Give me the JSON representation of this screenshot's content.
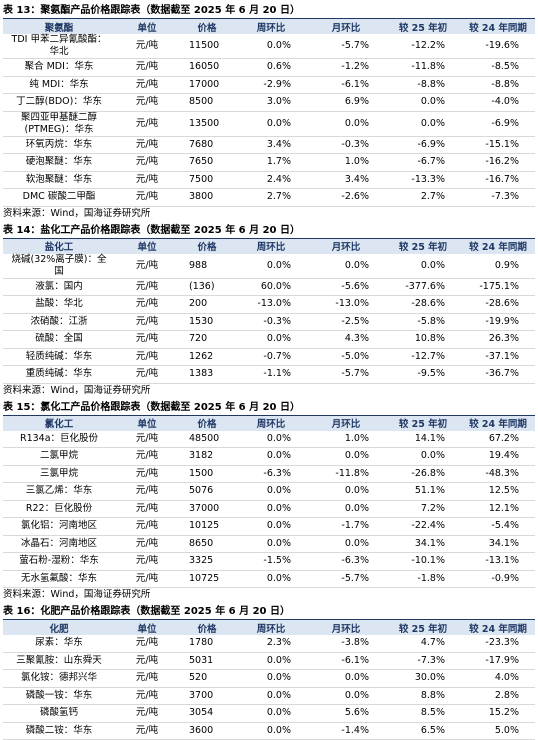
{
  "tables": [
    {
      "title": "表 13：聚氨酯产品价格跟踪表（数据截至 2025 年 6 月 20 日）",
      "headers": [
        "聚氨酯",
        "单位",
        "价格",
        "周环比",
        "月环比",
        "较 25 年初",
        "较 24 年同期"
      ],
      "rows": [
        [
          "TDI 甲苯二异氰酸酯：华北",
          "元/吨",
          "11500",
          "0.0%",
          "-5.7%",
          "-12.2%",
          "-19.6%"
        ],
        [
          "聚合 MDI：华东",
          "元/吨",
          "16050",
          "0.6%",
          "-1.2%",
          "-11.8%",
          "-8.5%"
        ],
        [
          "纯 MDI：华东",
          "元/吨",
          "17000",
          "-2.9%",
          "-6.1%",
          "-8.8%",
          "-8.8%"
        ],
        [
          "丁二醇(BDO)：华东",
          "元/吨",
          "8500",
          "3.0%",
          "6.9%",
          "0.0%",
          "-4.0%"
        ],
        [
          "聚四亚甲基醚二醇(PTMEG)：华东",
          "元/吨",
          "13500",
          "0.0%",
          "0.0%",
          "0.0%",
          "-6.9%"
        ],
        [
          "环氧丙烷：华东",
          "元/吨",
          "7680",
          "3.4%",
          "-0.3%",
          "-6.9%",
          "-15.1%"
        ],
        [
          "硬泡聚醚：华东",
          "元/吨",
          "7650",
          "1.7%",
          "1.0%",
          "-6.7%",
          "-16.2%"
        ],
        [
          "软泡聚醚：华东",
          "元/吨",
          "7500",
          "2.4%",
          "3.4%",
          "-13.3%",
          "-16.7%"
        ],
        [
          "DMC 碳酸二甲酯",
          "元/吨",
          "3800",
          "2.7%",
          "-2.6%",
          "2.7%",
          "-7.3%"
        ]
      ],
      "source": "资料来源：Wind，国海证券研究所"
    },
    {
      "title": "表 14：盐化工产品价格跟踪表（数据截至 2025 年 6 月 20 日）",
      "headers": [
        "盐化工",
        "单位",
        "价格",
        "周环比",
        "月环比",
        "较 25 年初",
        "较 24 年同期"
      ],
      "rows": [
        [
          "烧碱(32%离子膜)：全国",
          "元/吨",
          "988",
          "0.0%",
          "0.0%",
          "0.0%",
          "0.9%"
        ],
        [
          "液氯：国内",
          "元/吨",
          "(136)",
          "60.0%",
          "-5.6%",
          "-377.6%",
          "-175.1%"
        ],
        [
          "盐酸：华北",
          "元/吨",
          "200",
          "-13.0%",
          "-13.0%",
          "-28.6%",
          "-28.6%"
        ],
        [
          "浓硝酸：江浙",
          "元/吨",
          "1530",
          "-0.3%",
          "-2.5%",
          "-5.8%",
          "-19.9%"
        ],
        [
          "硫酸：全国",
          "元/吨",
          "720",
          "0.0%",
          "4.3%",
          "10.8%",
          "26.3%"
        ],
        [
          "轻质纯碱：华东",
          "元/吨",
          "1262",
          "-0.7%",
          "-5.0%",
          "-12.7%",
          "-37.1%"
        ],
        [
          "重质纯碱：华东",
          "元/吨",
          "1383",
          "-1.1%",
          "-5.7%",
          "-9.5%",
          "-36.7%"
        ]
      ],
      "source": "资料来源：Wind，国海证券研究所"
    },
    {
      "title": "表 15：氯化工产品价格跟踪表（数据截至 2025 年 6 月 20 日）",
      "headers": [
        "氯化工",
        "单位",
        "价格",
        "周环比",
        "月环比",
        "较 25 年初",
        "较 24 年同期"
      ],
      "rows": [
        [
          "R134a：巨化股份",
          "元/吨",
          "48500",
          "0.0%",
          "1.0%",
          "14.1%",
          "67.2%"
        ],
        [
          "二氯甲烷",
          "元/吨",
          "3182",
          "0.0%",
          "0.0%",
          "0.0%",
          "19.4%"
        ],
        [
          "三氯甲烷",
          "元/吨",
          "1500",
          "-6.3%",
          "-11.8%",
          "-26.8%",
          "-48.3%"
        ],
        [
          "三氯乙烯：华东",
          "元/吨",
          "5076",
          "0.0%",
          "0.0%",
          "51.1%",
          "12.5%"
        ],
        [
          "R22：巨化股份",
          "元/吨",
          "37000",
          "0.0%",
          "0.0%",
          "7.2%",
          "12.1%"
        ],
        [
          "氯化铝：河南地区",
          "元/吨",
          "10125",
          "0.0%",
          "-1.7%",
          "-22.4%",
          "-5.4%"
        ],
        [
          "冰晶石：河南地区",
          "元/吨",
          "8650",
          "0.0%",
          "0.0%",
          "34.1%",
          "34.1%"
        ],
        [
          "萤石粉-湿粉：华东",
          "元/吨",
          "3325",
          "-1.5%",
          "-6.3%",
          "-10.1%",
          "-13.1%"
        ],
        [
          "无水氢氟酸：华东",
          "元/吨",
          "10725",
          "0.0%",
          "-5.7%",
          "-1.8%",
          "-0.9%"
        ]
      ],
      "source": "资料来源：Wind，国海证券研究所"
    },
    {
      "title": "表 16：化肥产品价格跟踪表（数据截至 2025 年 6 月 20 日）",
      "headers": [
        "化肥",
        "单位",
        "价格",
        "周环比",
        "月环比",
        "较 25 年初",
        "较 24 年同期"
      ],
      "rows": [
        [
          "尿素：华东",
          "元/吨",
          "1780",
          "2.3%",
          "-3.8%",
          "4.7%",
          "-23.3%"
        ],
        [
          "三聚氰胺：山东舜天",
          "元/吨",
          "5031",
          "0.0%",
          "-6.1%",
          "-7.3%",
          "-17.9%"
        ],
        [
          "氯化铵：德邦兴华",
          "元/吨",
          "520",
          "0.0%",
          "0.0%",
          "30.0%",
          "4.0%"
        ],
        [
          "磷酸一铵：华东",
          "元/吨",
          "3700",
          "0.0%",
          "0.0%",
          "8.8%",
          "2.8%"
        ],
        [
          "磷酸氢钙",
          "元/吨",
          "3054",
          "0.0%",
          "5.6%",
          "8.5%",
          "15.2%"
        ],
        [
          "磷酸二铵：华东",
          "元/吨",
          "3600",
          "0.0%",
          "-1.4%",
          "6.5%",
          "5.0%"
        ]
      ]
    }
  ]
}
